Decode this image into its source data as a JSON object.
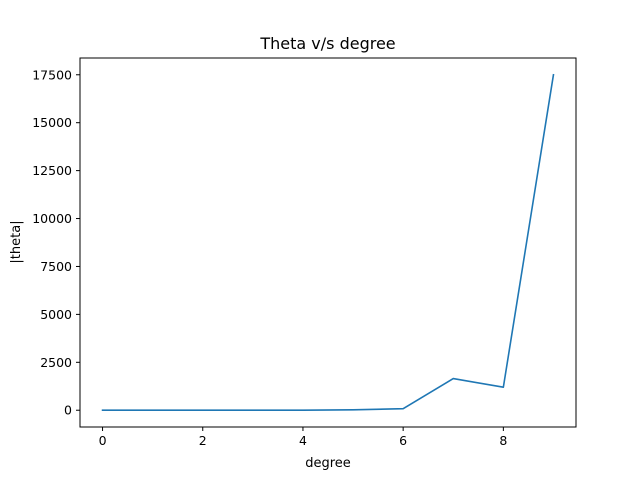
{
  "chart_data": {
    "type": "line",
    "title": "Theta v/s degree",
    "xlabel": "degree",
    "ylabel": "|theta|",
    "xlim": [
      -0.45,
      9.45
    ],
    "ylim": [
      -875,
      18375
    ],
    "x_ticks": [
      0,
      2,
      4,
      6,
      8
    ],
    "y_ticks": [
      0,
      2500,
      5000,
      7500,
      10000,
      12500,
      15000,
      17500
    ],
    "grid": false,
    "series": [
      {
        "color": "#1f77b4",
        "x": [
          0,
          1,
          2,
          3,
          4,
          5,
          6,
          7,
          8,
          9
        ],
        "y": [
          2,
          1,
          1,
          1,
          3,
          20,
          80,
          1650,
          1200,
          17500
        ]
      }
    ]
  }
}
